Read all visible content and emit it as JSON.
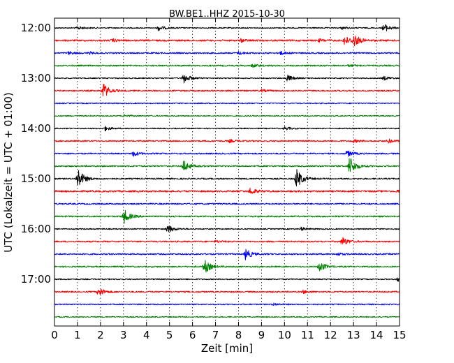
{
  "chart_data": {
    "type": "line",
    "title": "BW.BE1..HHZ 2015-10-30",
    "xlabel": "Zeit  [min]",
    "ylabel": "UTC (Lokalzeit = UTC + 01:00)",
    "xlim": [
      0,
      15
    ],
    "x_ticks": [
      "0",
      "1",
      "2",
      "3",
      "4",
      "5",
      "6",
      "7",
      "8",
      "9",
      "10",
      "11",
      "12",
      "13",
      "14",
      "15"
    ],
    "y_ticks": [
      "12:00",
      "13:00",
      "14:00",
      "15:00",
      "16:00",
      "17:00"
    ],
    "grid": "vertical dotted",
    "colors": {
      "black": "#000000",
      "red": "#ff0000",
      "blue": "#0000ff",
      "green": "#008000"
    },
    "traces": [
      {
        "start": "12:00",
        "color": "black",
        "noise": 0.8,
        "events": [
          [
            1.0,
            2.5
          ],
          [
            4.5,
            4
          ],
          [
            12.5,
            2
          ],
          [
            14.3,
            7
          ]
        ]
      },
      {
        "start": "12:15",
        "color": "red",
        "noise": 1.2,
        "events": [
          [
            2.5,
            2
          ],
          [
            8.1,
            2
          ],
          [
            11.5,
            2
          ],
          [
            12.6,
            7
          ],
          [
            13.0,
            9
          ]
        ]
      },
      {
        "start": "12:30",
        "color": "blue",
        "noise": 1.0,
        "events": [
          [
            0.6,
            2
          ],
          [
            1.5,
            1.5
          ],
          [
            8.0,
            2
          ],
          [
            9.8,
            2.5
          ]
        ]
      },
      {
        "start": "12:45",
        "color": "green",
        "noise": 1.0,
        "events": [
          [
            8.6,
            2.5
          ],
          [
            12.8,
            1.5
          ]
        ]
      },
      {
        "start": "13:00",
        "color": "black",
        "noise": 0.8,
        "events": [
          [
            5.6,
            8
          ],
          [
            10.1,
            5
          ],
          [
            14.3,
            3
          ]
        ]
      },
      {
        "start": "13:15",
        "color": "red",
        "noise": 1.0,
        "events": [
          [
            2.1,
            12
          ],
          [
            9.0,
            1.5
          ]
        ]
      },
      {
        "start": "13:30",
        "color": "blue",
        "noise": 0.8,
        "events": []
      },
      {
        "start": "13:45",
        "color": "green",
        "noise": 0.8,
        "events": [
          [
            3.0,
            2
          ]
        ]
      },
      {
        "start": "14:00",
        "color": "black",
        "noise": 0.8,
        "events": [
          [
            2.2,
            3
          ],
          [
            10.0,
            2.5
          ]
        ]
      },
      {
        "start": "14:15",
        "color": "red",
        "noise": 1.0,
        "events": [
          [
            7.6,
            2
          ],
          [
            13.0,
            2
          ],
          [
            14.5,
            3
          ]
        ]
      },
      {
        "start": "14:30",
        "color": "blue",
        "noise": 1.0,
        "events": [
          [
            3.4,
            4
          ],
          [
            12.7,
            5
          ]
        ]
      },
      {
        "start": "14:45",
        "color": "green",
        "noise": 1.0,
        "events": [
          [
            5.6,
            9
          ],
          [
            12.8,
            16
          ]
        ]
      },
      {
        "start": "15:00",
        "color": "black",
        "noise": 1.0,
        "events": [
          [
            1.0,
            16
          ],
          [
            10.5,
            16
          ]
        ]
      },
      {
        "start": "15:15",
        "color": "red",
        "noise": 1.2,
        "events": [
          [
            8.5,
            5
          ],
          [
            14.9,
            2
          ]
        ]
      },
      {
        "start": "15:30",
        "color": "blue",
        "noise": 1.0,
        "events": []
      },
      {
        "start": "15:45",
        "color": "green",
        "noise": 1.0,
        "events": [
          [
            3.0,
            11
          ]
        ]
      },
      {
        "start": "16:00",
        "color": "black",
        "noise": 0.8,
        "events": [
          [
            4.9,
            7
          ],
          [
            10.7,
            2.5
          ]
        ]
      },
      {
        "start": "16:15",
        "color": "red",
        "noise": 1.0,
        "events": [
          [
            7.0,
            1.5
          ],
          [
            12.5,
            7
          ]
        ]
      },
      {
        "start": "16:30",
        "color": "blue",
        "noise": 1.0,
        "events": [
          [
            8.3,
            8
          ],
          [
            12.3,
            2
          ]
        ]
      },
      {
        "start": "16:45",
        "color": "green",
        "noise": 1.0,
        "events": [
          [
            6.5,
            11
          ],
          [
            11.5,
            8
          ]
        ]
      },
      {
        "start": "17:00",
        "color": "black",
        "noise": 0.8,
        "events": [
          [
            14.9,
            3
          ]
        ]
      },
      {
        "start": "17:15",
        "color": "red",
        "noise": 1.0,
        "events": [
          [
            1.9,
            7
          ],
          [
            10.8,
            2
          ]
        ]
      },
      {
        "start": "17:30",
        "color": "blue",
        "noise": 0.8,
        "events": [
          [
            9.5,
            2
          ]
        ]
      },
      {
        "start": "17:45",
        "color": "green",
        "noise": 0.8,
        "events": []
      }
    ]
  }
}
